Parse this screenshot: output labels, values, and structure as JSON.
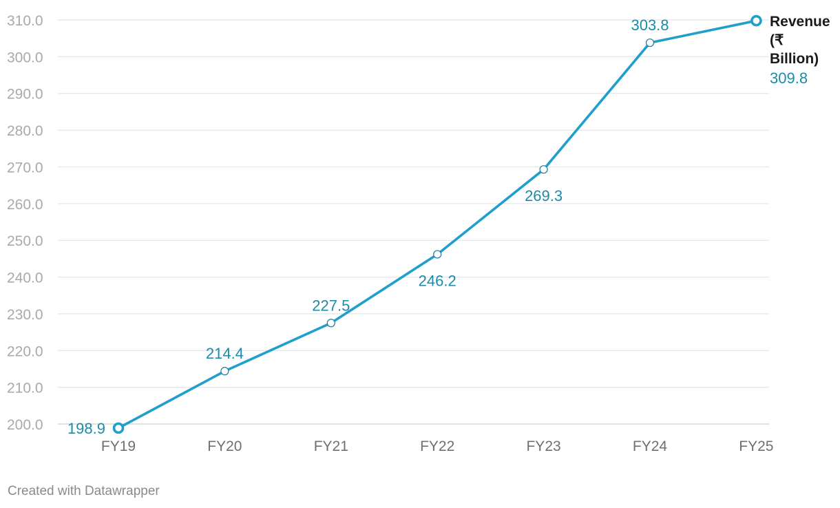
{
  "chart_data": {
    "type": "line",
    "categories": [
      "FY19",
      "FY20",
      "FY21",
      "FY22",
      "FY23",
      "FY24",
      "FY25"
    ],
    "series": [
      {
        "name": "Revenue (₹ Billion)",
        "values": [
          198.9,
          214.4,
          227.5,
          246.2,
          269.3,
          303.8,
          309.8
        ],
        "data_labels": [
          "198.9",
          "214.4",
          "227.5",
          "246.2",
          "269.3",
          "303.8",
          "309.8"
        ]
      }
    ],
    "series_label_lines": [
      "Revenue",
      "(₹",
      "Billion)"
    ],
    "y_ticks": [
      "310.0",
      "300.0",
      "290.0",
      "280.0",
      "270.0",
      "260.0",
      "250.0",
      "240.0",
      "230.0",
      "220.0",
      "210.0",
      "200.0"
    ],
    "ylim": [
      200,
      310
    ],
    "y_tick_step": 10,
    "grid": true,
    "line_color": "#1f9fcb",
    "label_color": "#1b8ba8",
    "title": "",
    "xlabel": "",
    "ylabel": ""
  },
  "footer": {
    "credit": "Created with Datawrapper"
  }
}
